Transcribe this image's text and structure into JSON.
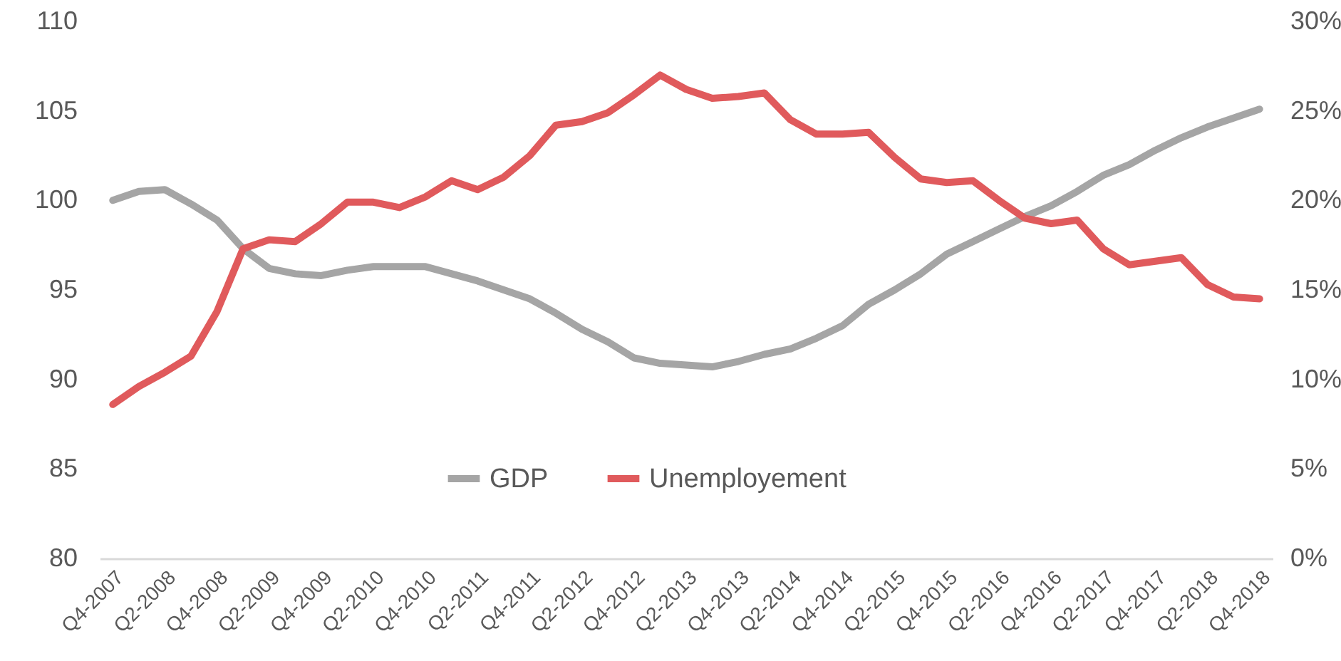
{
  "chart_data": {
    "type": "line",
    "categories": [
      "Q4-2007",
      null,
      "Q2-2008",
      null,
      "Q4-2008",
      null,
      "Q2-2009",
      null,
      "Q4-2009",
      null,
      "Q2-2010",
      null,
      "Q4-2010",
      null,
      "Q2-2011",
      null,
      "Q4-2011",
      null,
      "Q2-2012",
      null,
      "Q4-2012",
      null,
      "Q2-2013",
      null,
      "Q4-2013",
      null,
      "Q2-2014",
      null,
      "Q4-2014",
      null,
      "Q2-2015",
      null,
      "Q4-2015",
      null,
      "Q2-2016",
      null,
      "Q4-2016",
      null,
      "Q2-2017",
      null,
      "Q4-2017",
      null,
      "Q2-2018",
      null,
      "Q4-2018"
    ],
    "series": [
      {
        "name": "GDP",
        "color": "#a5a5a5",
        "values": [
          100.0,
          100.5,
          100.6,
          99.8,
          98.9,
          97.3,
          96.2,
          95.9,
          95.8,
          96.1,
          96.3,
          96.3,
          96.3,
          95.9,
          95.5,
          95.0,
          94.5,
          93.7,
          92.8,
          92.1,
          91.2,
          90.9,
          90.8,
          90.7,
          91.0,
          91.4,
          91.7,
          92.3,
          93.0,
          94.2,
          95.0,
          95.9,
          97.0,
          97.7,
          98.4,
          99.1,
          99.7,
          100.5,
          101.4,
          102.0,
          102.8,
          103.5,
          104.1,
          104.6,
          105.1
        ]
      },
      {
        "name": "Unemployement",
        "color": "#e05a5c",
        "axis": "y2",
        "values": [
          8.6,
          9.6,
          10.4,
          11.3,
          13.8,
          17.3,
          17.8,
          17.7,
          18.7,
          19.9,
          19.9,
          19.6,
          20.2,
          21.1,
          20.6,
          21.3,
          22.5,
          24.2,
          24.4,
          24.9,
          25.9,
          27.0,
          26.2,
          25.7,
          25.8,
          26.0,
          24.5,
          23.7,
          23.7,
          23.8,
          22.4,
          21.2,
          21.0,
          21.1,
          20.0,
          19.0,
          18.7,
          18.9,
          17.3,
          16.4,
          16.6,
          16.8,
          15.3,
          14.6,
          14.5
        ]
      }
    ],
    "ylim": [
      80,
      110
    ],
    "yticks": [
      80,
      85,
      90,
      95,
      100,
      105,
      110
    ],
    "y2lim": [
      0,
      30
    ],
    "y2ticks": [
      {
        "value": 0,
        "label": "0%"
      },
      {
        "value": 5,
        "label": "5%"
      },
      {
        "value": 10,
        "label": "10%"
      },
      {
        "value": 15,
        "label": "15%"
      },
      {
        "value": 20,
        "label": "20%"
      },
      {
        "value": 25,
        "label": "25%"
      },
      {
        "value": 30,
        "label": "30%"
      }
    ],
    "legend": "bottom"
  }
}
